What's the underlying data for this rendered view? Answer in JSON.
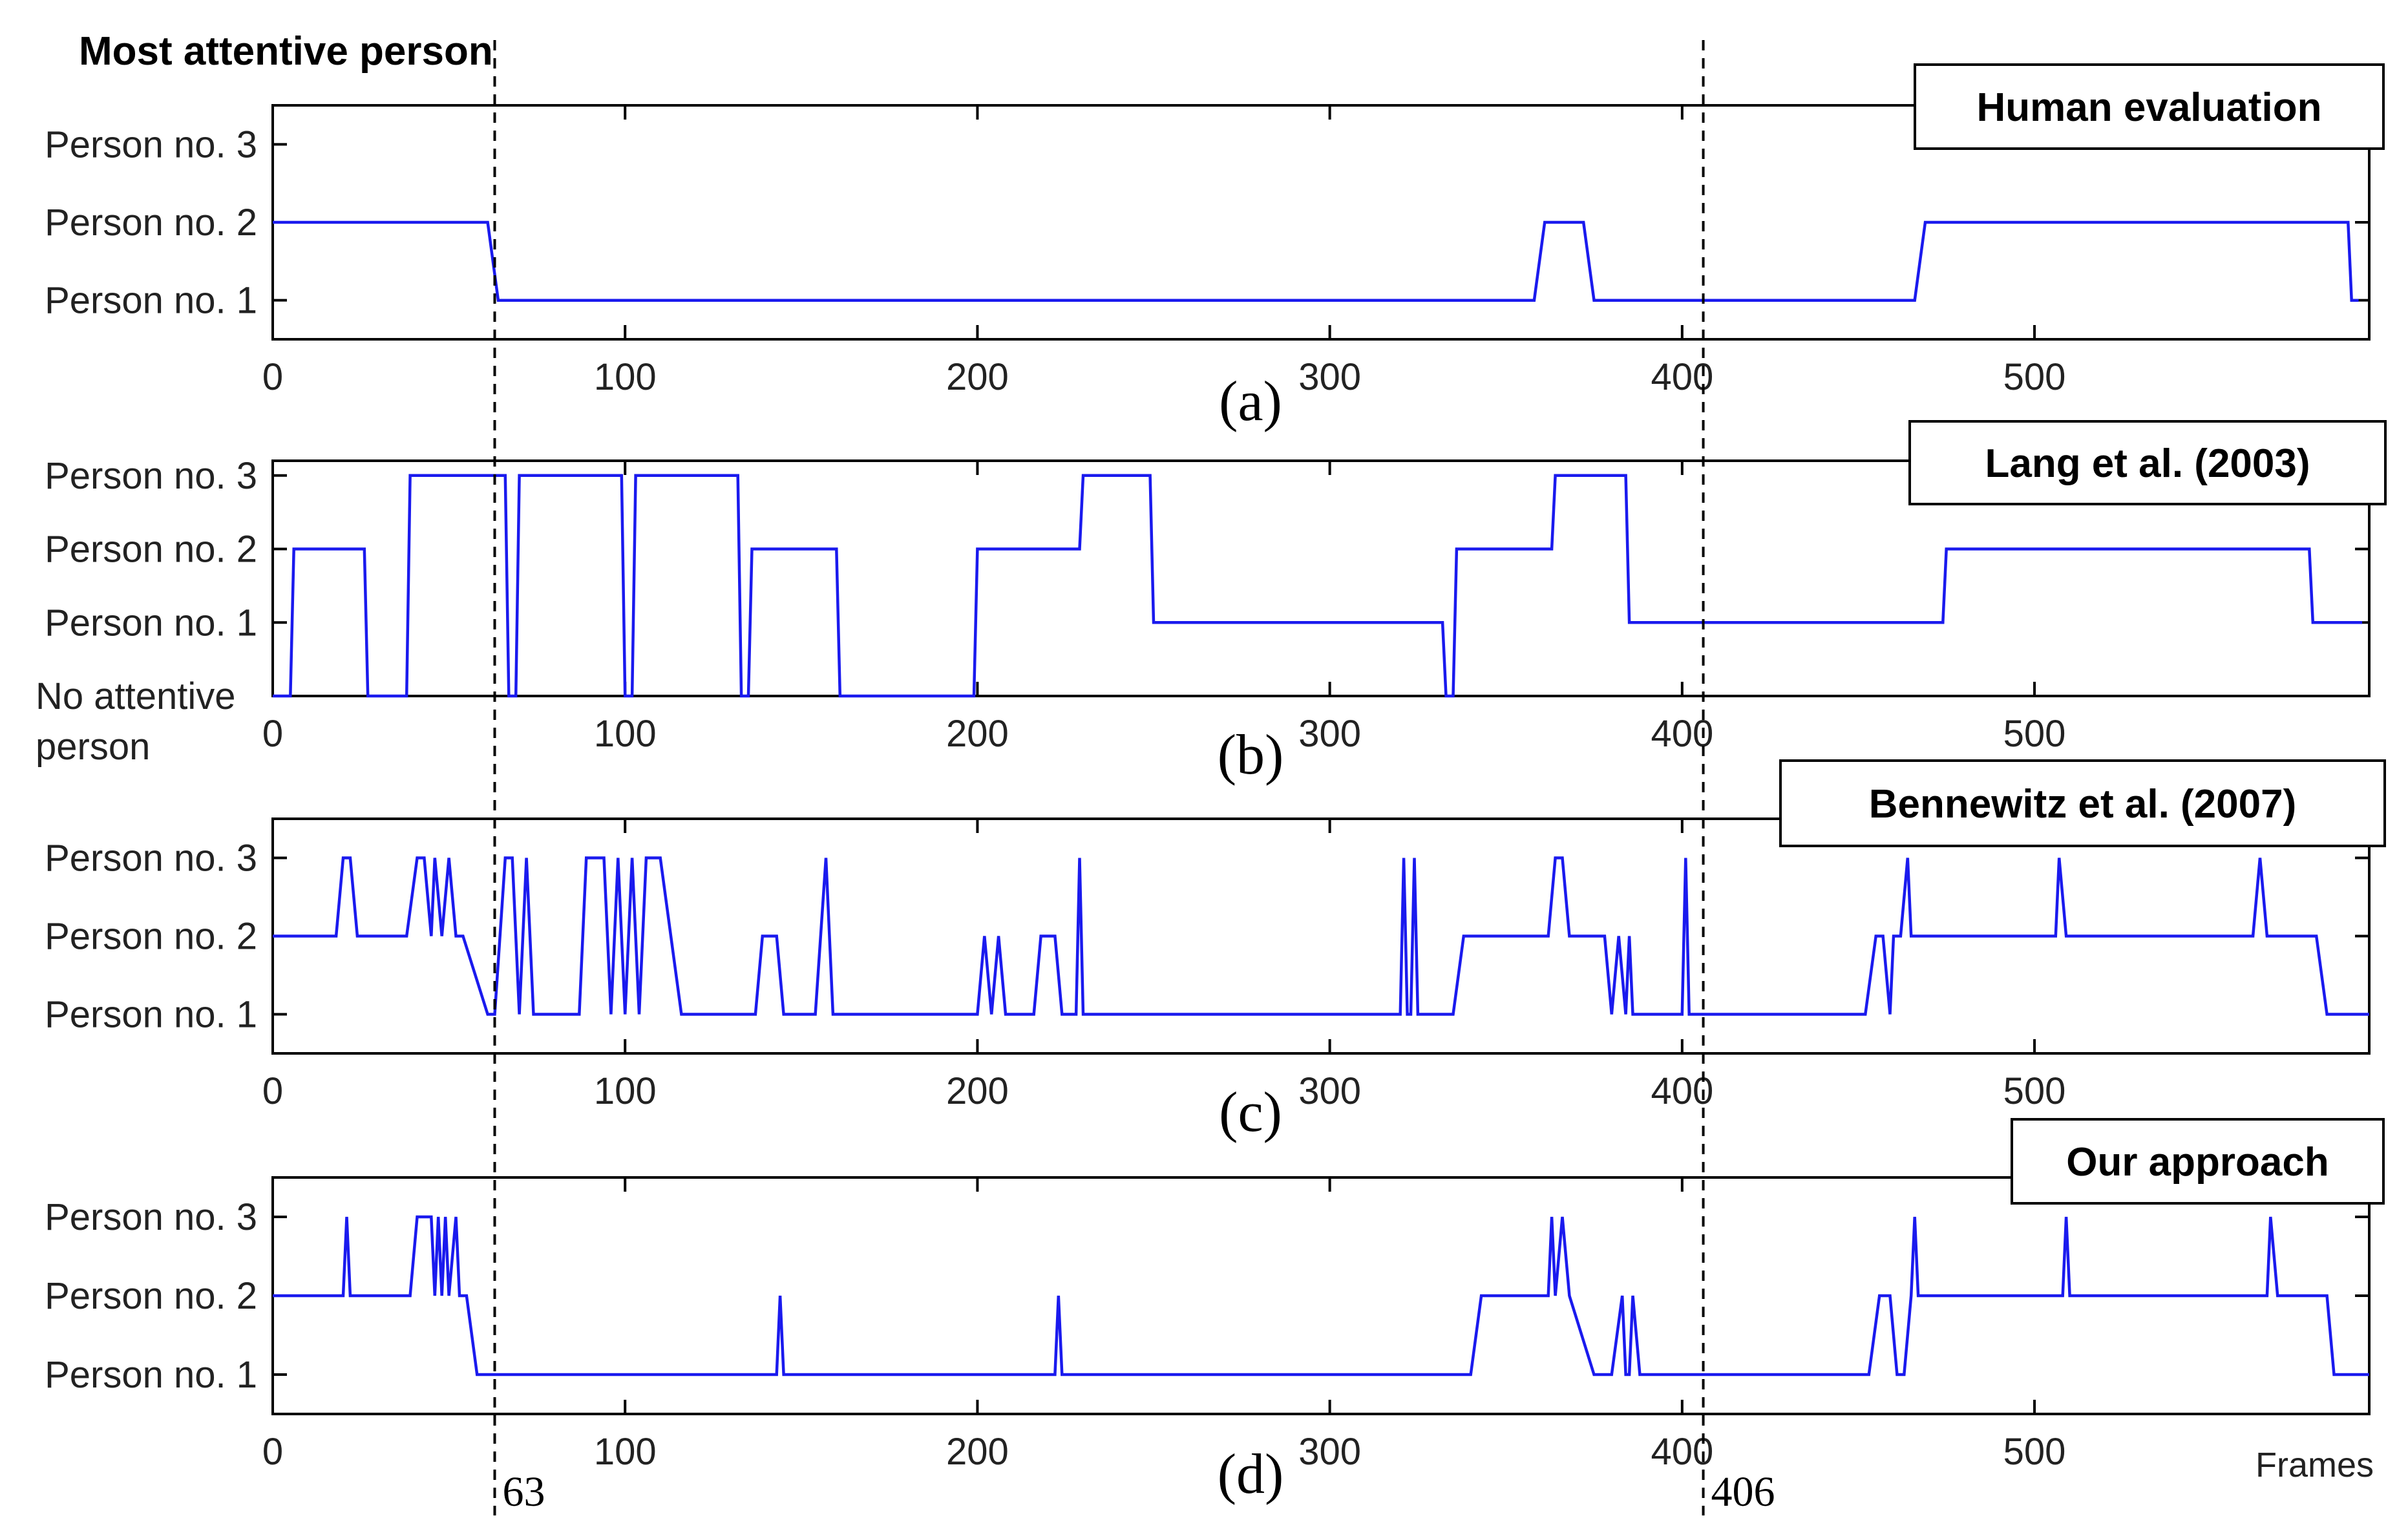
{
  "figure_title": "Most attentive person",
  "x_axis_label": "Frames",
  "markers": [
    {
      "frame": 63,
      "label": "63"
    },
    {
      "frame": 406,
      "label": "406"
    }
  ],
  "colors": {
    "series": "#1a1aee",
    "axis": "#000000",
    "background": "#ffffff"
  },
  "chart_data": [
    {
      "type": "line",
      "panel": "a",
      "panel_label": "(a)",
      "title": "Human evaluation",
      "xlim": [
        0,
        595
      ],
      "ylim": [
        0.5,
        3.5
      ],
      "x_ticks": [
        0,
        100,
        200,
        300,
        400,
        500
      ],
      "x_tick_labels": [
        "0",
        "100",
        "200",
        "300",
        "400",
        "500"
      ],
      "y_ticks": [
        1,
        2,
        3
      ],
      "y_tick_labels": [
        "Person no. 1",
        "Person no. 2",
        "Person no. 3"
      ],
      "series": [
        {
          "name": "Human evaluation",
          "x": [
            0,
            61,
            64,
            358,
            361,
            372,
            375,
            466,
            469,
            589,
            590,
            592
          ],
          "y": [
            2,
            2,
            1,
            1,
            2,
            2,
            1,
            1,
            2,
            2,
            1,
            1
          ]
        }
      ]
    },
    {
      "type": "line",
      "panel": "b",
      "panel_label": "(b)",
      "title": "Lang et al. (2003)",
      "xlim": [
        0,
        595
      ],
      "ylim": [
        0,
        3.2
      ],
      "x_ticks": [
        0,
        100,
        200,
        300,
        400,
        500
      ],
      "x_tick_labels": [
        "0",
        "100",
        "200",
        "300",
        "400",
        "500"
      ],
      "y_ticks": [
        0,
        1,
        2,
        3
      ],
      "y_tick_labels": [
        "No attentive\nperson",
        "Person no. 1",
        "Person no. 2",
        "Person no. 3"
      ],
      "series": [
        {
          "name": "Lang et al. (2003)",
          "x": [
            0,
            5,
            6,
            26,
            27,
            38,
            39,
            66,
            67,
            69,
            70,
            99,
            100,
            102,
            103,
            132,
            133,
            135,
            136,
            160,
            161,
            199,
            200,
            229,
            230,
            249,
            250,
            332,
            333,
            335,
            336,
            363,
            364,
            384,
            385,
            474,
            475,
            578,
            579,
            593
          ],
          "y": [
            0,
            0,
            2,
            2,
            0,
            0,
            3,
            3,
            0,
            0,
            3,
            3,
            0,
            0,
            3,
            3,
            0,
            0,
            2,
            2,
            0,
            0,
            2,
            2,
            3,
            3,
            1,
            1,
            0,
            0,
            2,
            2,
            3,
            3,
            1,
            1,
            2,
            2,
            1,
            1
          ]
        }
      ]
    },
    {
      "type": "line",
      "panel": "c",
      "panel_label": "(c)",
      "title": "Bennewitz et al. (2007)",
      "xlim": [
        0,
        595
      ],
      "ylim": [
        0.5,
        3.5
      ],
      "x_ticks": [
        0,
        100,
        200,
        300,
        400,
        500
      ],
      "x_tick_labels": [
        "0",
        "100",
        "200",
        "300",
        "400",
        "500"
      ],
      "y_ticks": [
        1,
        2,
        3
      ],
      "y_tick_labels": [
        "Person no. 1",
        "Person no. 2",
        "Person no. 3"
      ],
      "series": [
        {
          "name": "Bennewitz et al. (2007)",
          "x": [
            0,
            18,
            20,
            22,
            24,
            38,
            41,
            43,
            45,
            46,
            48,
            50,
            52,
            54,
            61,
            63,
            66,
            68,
            70,
            72,
            74,
            87,
            89,
            94,
            96,
            98,
            100,
            102,
            104,
            106,
            108,
            110,
            116,
            118,
            137,
            139,
            143,
            145,
            154,
            157,
            159,
            200,
            202,
            204,
            206,
            208,
            210,
            216,
            218,
            222,
            224,
            228,
            229,
            230,
            320,
            321,
            322,
            323,
            324,
            325,
            326,
            335,
            338,
            362,
            364,
            366,
            368,
            378,
            380,
            382,
            384,
            385,
            386,
            387,
            400,
            401,
            402,
            452,
            455,
            457,
            459,
            460,
            462,
            464,
            465,
            467,
            506,
            507,
            509,
            510,
            562,
            564,
            566,
            580,
            583,
            595
          ],
          "y": [
            2,
            2,
            3,
            3,
            2,
            2,
            3,
            3,
            2,
            3,
            2,
            3,
            2,
            2,
            1,
            1,
            3,
            3,
            1,
            3,
            1,
            1,
            3,
            3,
            1,
            3,
            1,
            3,
            1,
            3,
            3,
            3,
            1,
            1,
            1,
            2,
            2,
            1,
            1,
            3,
            1,
            1,
            2,
            1,
            2,
            1,
            1,
            1,
            2,
            2,
            1,
            1,
            3,
            1,
            1,
            3,
            1,
            1,
            3,
            1,
            1,
            1,
            2,
            2,
            3,
            3,
            2,
            2,
            1,
            2,
            1,
            2,
            1,
            1,
            1,
            3,
            1,
            1,
            2,
            2,
            1,
            2,
            2,
            3,
            2,
            2,
            2,
            3,
            2,
            2,
            2,
            3,
            2,
            2,
            1,
            1
          ]
        }
      ]
    },
    {
      "type": "line",
      "panel": "d",
      "panel_label": "(d)",
      "title": "Our approach",
      "xlim": [
        0,
        595
      ],
      "ylim": [
        0.5,
        3.5
      ],
      "x_ticks": [
        0,
        100,
        200,
        300,
        400,
        500
      ],
      "x_tick_labels": [
        "0",
        "100",
        "200",
        "300",
        "400",
        "500"
      ],
      "y_ticks": [
        1,
        2,
        3
      ],
      "y_tick_labels": [
        "Person no. 1",
        "Person no. 2",
        "Person no. 3"
      ],
      "series": [
        {
          "name": "Our approach",
          "x": [
            0,
            20,
            21,
            22,
            39,
            41,
            45,
            46,
            47,
            48,
            49,
            50,
            52,
            53,
            55,
            58,
            60,
            143,
            144,
            145,
            222,
            223,
            224,
            340,
            343,
            362,
            363,
            364,
            366,
            368,
            375,
            380,
            383,
            384,
            385,
            386,
            388,
            389,
            390,
            453,
            456,
            459,
            461,
            463,
            465,
            466,
            467,
            508,
            509,
            510,
            566,
            567,
            569,
            583,
            585,
            595
          ],
          "y": [
            2,
            2,
            3,
            2,
            2,
            3,
            3,
            2,
            3,
            2,
            3,
            2,
            3,
            2,
            2,
            1,
            1,
            1,
            2,
            1,
            1,
            2,
            1,
            1,
            2,
            2,
            3,
            2,
            3,
            2,
            1,
            1,
            2,
            1,
            1,
            2,
            1,
            1,
            1,
            1,
            2,
            2,
            1,
            1,
            2,
            3,
            2,
            2,
            3,
            2,
            2,
            3,
            2,
            2,
            1,
            1
          ]
        }
      ]
    }
  ]
}
